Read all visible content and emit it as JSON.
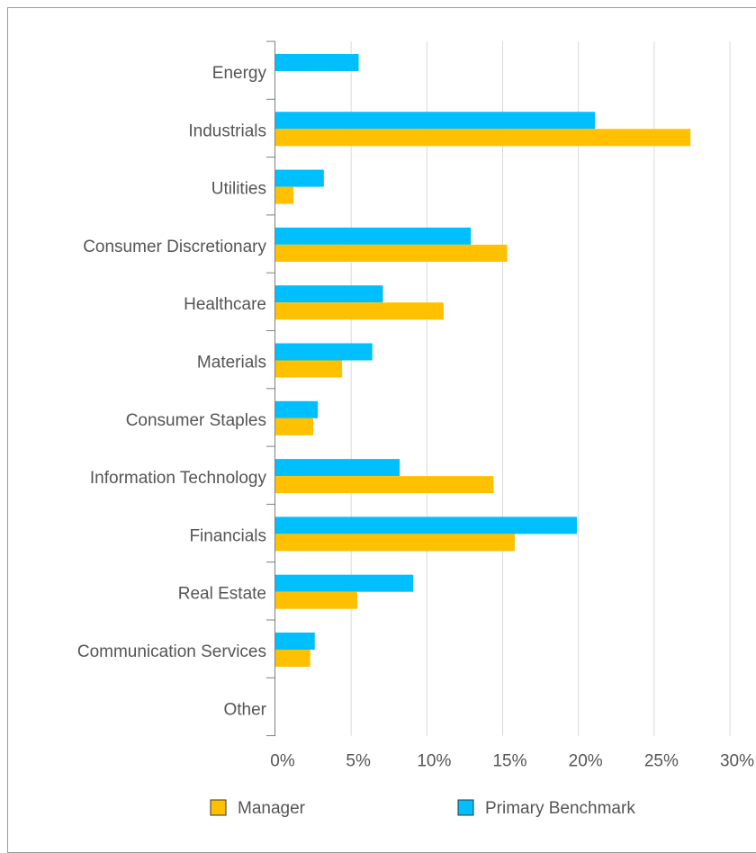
{
  "chart_data": {
    "type": "bar",
    "orientation": "horizontal",
    "categories": [
      "Energy",
      "Industrials",
      "Utilities",
      "Consumer Discretionary",
      "Healthcare",
      "Materials",
      "Consumer Staples",
      "Information Technology",
      "Financials",
      "Real Estate",
      "Communication Services",
      "Other"
    ],
    "series": [
      {
        "name": "Primary Benchmark",
        "color": "#00BFFF",
        "values": [
          5.5,
          21.1,
          3.2,
          12.9,
          7.1,
          6.4,
          2.8,
          8.2,
          19.9,
          9.1,
          2.6,
          0
        ]
      },
      {
        "name": "Manager",
        "color": "#FFC000",
        "values": [
          0,
          27.4,
          1.2,
          15.3,
          11.1,
          4.4,
          2.5,
          14.4,
          15.8,
          5.4,
          2.3,
          0
        ]
      }
    ],
    "xlim": [
      0,
      30
    ],
    "xticks": [
      "0%",
      "5%",
      "10%",
      "15%",
      "20%",
      "25%",
      "30%"
    ],
    "grid": "vertical",
    "legend": {
      "placement": "bottom",
      "entries": [
        "Manager",
        "Primary Benchmark"
      ]
    }
  }
}
